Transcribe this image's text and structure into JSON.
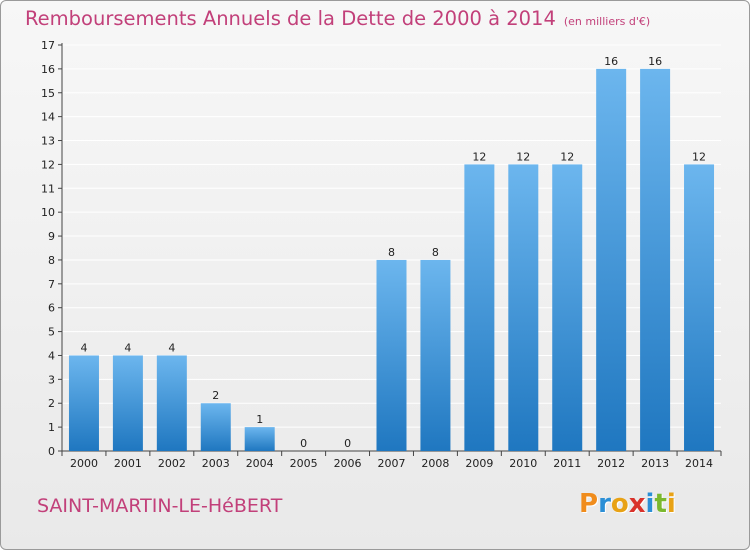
{
  "header": {
    "title": "Remboursements Annuels de la Dette de 2000 à 2014",
    "unit": "(en milliers d'€)"
  },
  "footer": {
    "commune": "SAINT-MARTIN-LE-HéBERT",
    "logo": "Proxiti",
    "logo_colors": [
      "#f08c1c",
      "#2b8fd6",
      "#e8a215",
      "#d9322b",
      "#2b8fd6",
      "#7ab82e",
      "#e8a215"
    ]
  },
  "colors": {
    "bar_light": "#6cb6ee",
    "bar_dark": "#1f77c0",
    "grid": "#ffffff",
    "axis": "#444444",
    "text": "#222222",
    "accent": "#c2407a"
  },
  "chart_data": {
    "type": "bar",
    "categories": [
      "2000",
      "2001",
      "2002",
      "2003",
      "2004",
      "2005",
      "2006",
      "2007",
      "2008",
      "2009",
      "2010",
      "2011",
      "2012",
      "2013",
      "2014"
    ],
    "values": [
      4,
      4,
      4,
      2,
      1,
      0,
      0,
      8,
      8,
      12,
      12,
      12,
      16,
      16,
      12
    ],
    "title": "Remboursements Annuels de la Dette de 2000 à 2014",
    "xlabel": "",
    "ylabel": "",
    "ylim": [
      0,
      17
    ],
    "yticks": [
      0,
      1,
      2,
      3,
      4,
      5,
      6,
      7,
      8,
      9,
      10,
      11,
      12,
      13,
      14,
      15,
      16,
      17
    ],
    "grid": true,
    "data_labels": true
  }
}
